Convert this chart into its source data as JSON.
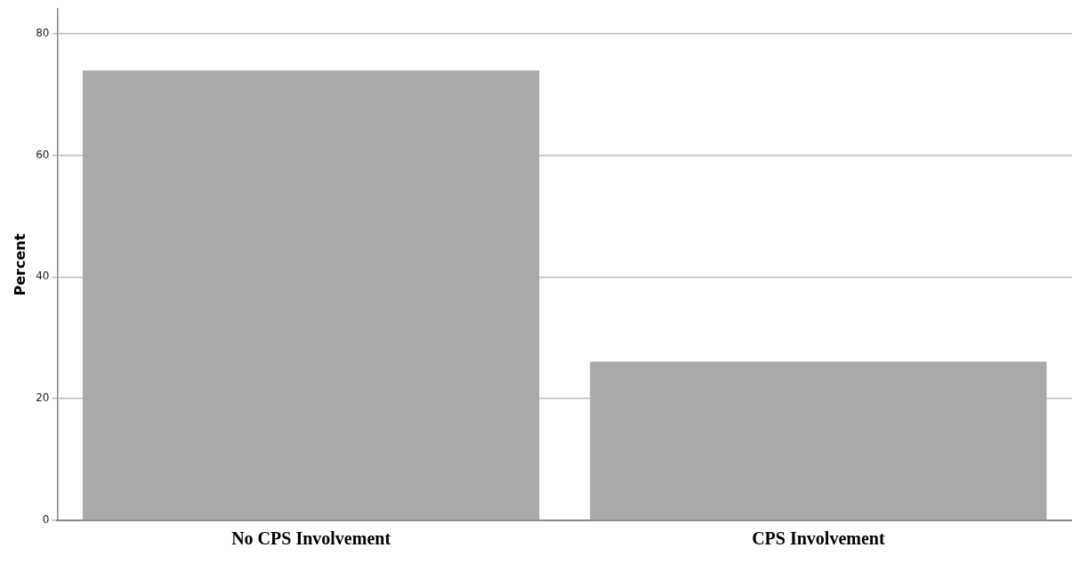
{
  "chart_data": {
    "type": "bar",
    "ylabel": "Percent",
    "categories": [
      "No CPS Involvement",
      "CPS Involvement"
    ],
    "values": [
      73.9,
      26.1
    ],
    "color": "#a9a9a9",
    "ylim": [
      0,
      84
    ],
    "yticks": [
      0,
      20,
      40,
      60,
      80
    ],
    "grid": "y"
  }
}
